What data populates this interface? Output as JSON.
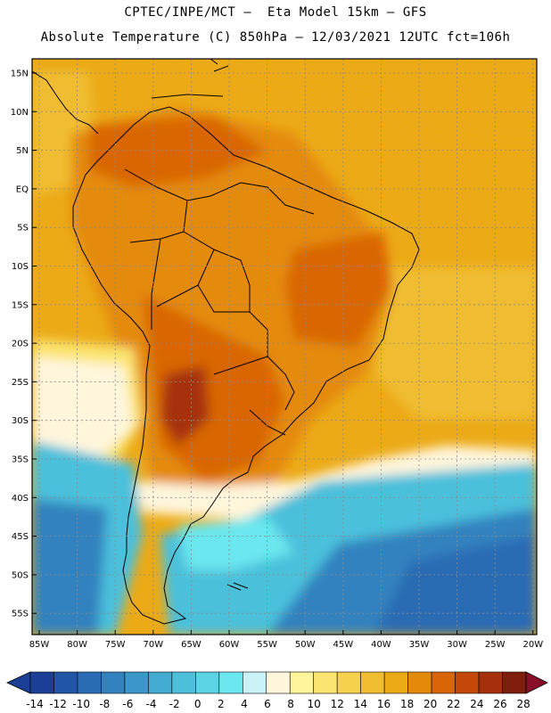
{
  "title_line1": "CPTEC/INPE/MCT –  Eta Model 15km – GFS",
  "title_line2": "Absolute Temperature (C) 850hPa – 12/03/2021 12UTC fct=106h",
  "map": {
    "lat_labels": [
      "15N",
      "10N",
      "5N",
      "EQ",
      "5S",
      "10S",
      "15S",
      "20S",
      "25S",
      "30S",
      "35S",
      "40S",
      "45S",
      "50S",
      "55S"
    ],
    "lon_labels": [
      "85W",
      "80W",
      "75W",
      "70W",
      "65W",
      "60W",
      "55W",
      "50W",
      "45W",
      "40W",
      "35W",
      "30W",
      "25W",
      "20W"
    ],
    "colorbar_values": [
      "-14",
      "-12",
      "-10",
      "-8",
      "-6",
      "-4",
      "-2",
      "0",
      "2",
      "4",
      "6",
      "8",
      "10",
      "12",
      "14",
      "16",
      "18",
      "20",
      "22",
      "24",
      "26",
      "28"
    ],
    "colorbar_colors": [
      "#1a3f95",
      "#2156a6",
      "#2a6cb4",
      "#3282bf",
      "#3a97c8",
      "#42abd1",
      "#4cc0db",
      "#5ad4e4",
      "#6be7ef",
      "#c9f3f7",
      "#fff6dc",
      "#fff59a",
      "#fbe470",
      "#f6d14c",
      "#f0bd30",
      "#ecaa17",
      "#e48a08",
      "#d96606",
      "#c44908",
      "#a5300b",
      "#7e1e0c",
      "#8a0e2a"
    ],
    "field_colors": {
      "ocean_warm": "#ecaa17",
      "ocean_mid": "#f0bd30",
      "land_hot": "#e48a08",
      "land_hotter": "#d96606",
      "land_hottest": "#a5300b",
      "cool_yellow": "#fbe470",
      "cream": "#fff6dc",
      "cyan": "#4cc0db",
      "cyan_light": "#6be7ef",
      "blue": "#3282bf",
      "blue_dark": "#2a6cb4"
    }
  }
}
